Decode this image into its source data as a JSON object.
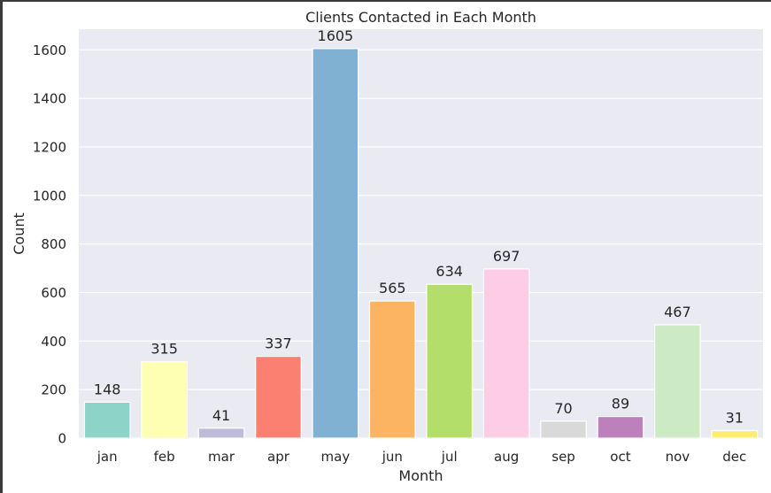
{
  "chart_data": {
    "type": "bar",
    "title": "Clients Contacted in Each Month",
    "xlabel": "Month",
    "ylabel": "Count",
    "categories": [
      "jan",
      "feb",
      "mar",
      "apr",
      "may",
      "jun",
      "jul",
      "aug",
      "sep",
      "oct",
      "nov",
      "dec"
    ],
    "values": [
      148,
      315,
      41,
      337,
      1605,
      565,
      634,
      697,
      70,
      89,
      467,
      31
    ],
    "data_labels": [
      "148",
      "315",
      "41",
      "337",
      "1605",
      "565",
      "634",
      "697",
      "70",
      "89",
      "467",
      "31"
    ],
    "colors": [
      "#8dd3c7",
      "#ffffb3",
      "#bebada",
      "#fb8072",
      "#80b1d3",
      "#fdb462",
      "#b3de69",
      "#fccde5",
      "#d9d9d9",
      "#bc80bd",
      "#ccebc5",
      "#ffed6f"
    ],
    "yticks": [
      0,
      200,
      400,
      600,
      800,
      1000,
      1200,
      1400,
      1600
    ],
    "ytick_labels": [
      "0",
      "200",
      "400",
      "600",
      "800",
      "1000",
      "1200",
      "1400",
      "1600"
    ],
    "ylim": [
      0,
      1685
    ],
    "grid": true,
    "legend": "none",
    "background": "#eaeaf2"
  }
}
